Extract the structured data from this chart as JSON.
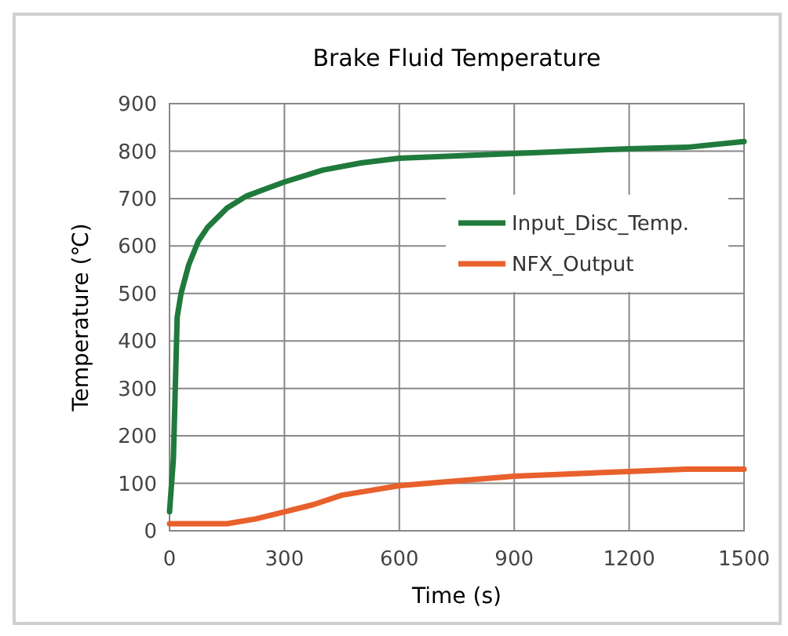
{
  "chart_data": {
    "type": "line",
    "title": "Brake Fluid Temperature",
    "xlabel": "Time (s)",
    "ylabel": "Temperature (℃)",
    "series": [
      {
        "name": "Input_Disc_Temp.",
        "color": "#1f7a3c",
        "x": [
          0,
          10,
          20,
          30,
          50,
          75,
          100,
          150,
          200,
          250,
          300,
          400,
          500,
          600,
          750,
          900,
          1050,
          1200,
          1350,
          1500
        ],
        "values": [
          40,
          150,
          450,
          500,
          560,
          610,
          640,
          680,
          705,
          720,
          735,
          760,
          775,
          785,
          790,
          795,
          800,
          805,
          808,
          820
        ]
      },
      {
        "name": "NFX_Output",
        "color": "#e8602c",
        "x": [
          0,
          75,
          150,
          225,
          300,
          375,
          450,
          525,
          600,
          750,
          900,
          1050,
          1200,
          1350,
          1500
        ],
        "values": [
          15,
          15,
          15,
          25,
          40,
          55,
          75,
          85,
          95,
          105,
          115,
          120,
          125,
          130,
          130
        ]
      }
    ],
    "xlim": [
      0,
      1500
    ],
    "xticks": [
      0,
      300,
      600,
      900,
      1200,
      1500
    ],
    "ylim": [
      0,
      900
    ],
    "yticks": [
      0,
      100,
      200,
      300,
      400,
      500,
      600,
      700,
      800,
      900
    ],
    "grid": true,
    "legend": "top right",
    "line_style": "solid",
    "marker": "none"
  }
}
